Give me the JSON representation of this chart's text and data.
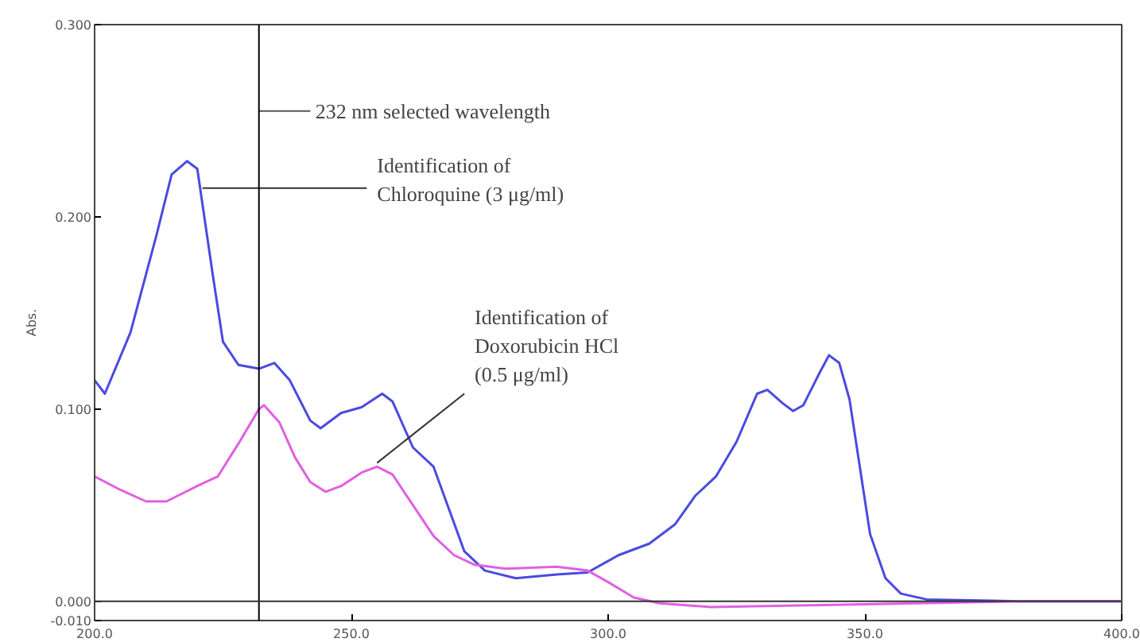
{
  "chart_data": {
    "type": "line",
    "ylabel": "Abs.",
    "xlim": [
      200,
      400
    ],
    "ylim": [
      -0.01,
      0.3
    ],
    "xticks": [
      {
        "value": 200,
        "label": "200.0"
      },
      {
        "value": 250,
        "label": "250.0"
      },
      {
        "value": 300,
        "label": "300.0"
      },
      {
        "value": 350,
        "label": "350.0"
      },
      {
        "value": 400,
        "label": "400.0"
      }
    ],
    "yticks": [
      {
        "value": -0.01,
        "label": "-0.010"
      },
      {
        "value": 0,
        "label": "0.000"
      },
      {
        "value": 0.1,
        "label": "0.100"
      },
      {
        "value": 0.2,
        "label": "0.200"
      },
      {
        "value": 0.3,
        "label": "0.300"
      }
    ],
    "marker": "none",
    "line_style": "solid",
    "series": [
      {
        "color": "#4a4ae0",
        "x": [
          200,
          202,
          207,
          212,
          215,
          218,
          220,
          223,
          225,
          228,
          232,
          235,
          238,
          242,
          244,
          248,
          252,
          256,
          258,
          262,
          266,
          269,
          272,
          276,
          282,
          290,
          296,
          302,
          308,
          313,
          317,
          321,
          325,
          329,
          331,
          334,
          336,
          338,
          341,
          343,
          345,
          347,
          349,
          351,
          354,
          357,
          362,
          380,
          400
        ],
        "values": [
          0.115,
          0.108,
          0.14,
          0.19,
          0.222,
          0.229,
          0.225,
          0.17,
          0.135,
          0.123,
          0.121,
          0.124,
          0.115,
          0.094,
          0.09,
          0.098,
          0.101,
          0.108,
          0.104,
          0.08,
          0.07,
          0.048,
          0.026,
          0.016,
          0.012,
          0.014,
          0.015,
          0.024,
          0.03,
          0.04,
          0.055,
          0.065,
          0.083,
          0.108,
          0.11,
          0.103,
          0.099,
          0.102,
          0.118,
          0.128,
          0.124,
          0.105,
          0.07,
          0.035,
          0.012,
          0.004,
          0.001,
          0.0,
          0.0
        ]
      },
      {
        "color": "#e060e0",
        "x": [
          200,
          205,
          210,
          214,
          220,
          224,
          228,
          232,
          233,
          236,
          239,
          242,
          245,
          248,
          252,
          255,
          258,
          262,
          266,
          270,
          274,
          280,
          290,
          296,
          300,
          305,
          310,
          320,
          340,
          360,
          380,
          400
        ],
        "values": [
          0.065,
          0.058,
          0.052,
          0.052,
          0.06,
          0.065,
          0.082,
          0.1,
          0.102,
          0.093,
          0.075,
          0.062,
          0.057,
          0.06,
          0.067,
          0.07,
          0.066,
          0.05,
          0.034,
          0.024,
          0.019,
          0.017,
          0.018,
          0.016,
          0.01,
          0.002,
          -0.001,
          -0.003,
          -0.002,
          -0.001,
          0.0,
          0.0
        ]
      }
    ],
    "ref_lines": [
      {
        "axis": "x",
        "value": 232,
        "label": "232 nm selected wavelength",
        "color": "#000000"
      },
      {
        "axis": "y",
        "value": 0,
        "color": "#333333"
      }
    ],
    "annotations": [
      {
        "text": "Identification of\nChloroquine (3 μg/ml)",
        "x": 221,
        "y": 0.215
      },
      {
        "text": "Identification of\nDoxorubicin HCl\n(0.5 μg/ml)",
        "x": 255,
        "y": 0.072
      }
    ]
  }
}
